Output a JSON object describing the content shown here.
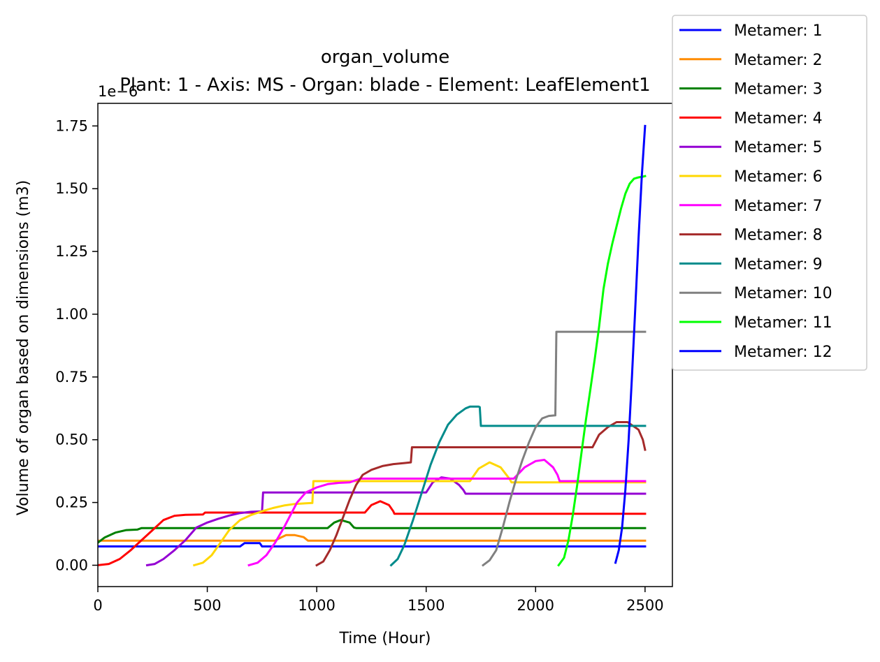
{
  "chart_data": {
    "type": "line",
    "title": "organ_volume",
    "subtitle": "Plant: 1 - Axis: MS - Organ: blade - Element: LeafElement1",
    "xlabel": "Time (Hour)",
    "ylabel": "Volume of organ based on dimensions (m3)",
    "y_offset_label": "1e−6",
    "xlim": [
      0,
      2625
    ],
    "ylim": [
      -0.085,
      1.84
    ],
    "x_ticks": [
      0,
      500,
      1000,
      1500,
      2000,
      2500
    ],
    "x_tick_labels": [
      "0",
      "500",
      "1000",
      "1500",
      "2000",
      "2500"
    ],
    "y_ticks": [
      0,
      0.25,
      0.5,
      0.75,
      1.0,
      1.25,
      1.5,
      1.75
    ],
    "y_tick_labels": [
      "0.00",
      "0.25",
      "0.50",
      "0.75",
      "1.00",
      "1.25",
      "1.50",
      "1.75"
    ],
    "grid": false,
    "legend_position": "top-right, outside plot",
    "series": [
      {
        "name": "Metamer: 1",
        "color": "#0000ff",
        "x": [
          0,
          650,
          670,
          740,
          750,
          2500
        ],
        "y": [
          0.075,
          0.075,
          0.088,
          0.088,
          0.075,
          0.075
        ]
      },
      {
        "name": "Metamer: 2",
        "color": "#ff8c00",
        "x": [
          0,
          810,
          840,
          860,
          900,
          940,
          960,
          980,
          2500
        ],
        "y": [
          0.098,
          0.098,
          0.112,
          0.12,
          0.12,
          0.112,
          0.098,
          0.098,
          0.098
        ]
      },
      {
        "name": "Metamer: 3",
        "color": "#008000",
        "x": [
          0,
          30,
          80,
          130,
          180,
          200,
          1050,
          1080,
          1110,
          1150,
          1170,
          1180,
          2500
        ],
        "y": [
          0.09,
          0.11,
          0.13,
          0.14,
          0.142,
          0.148,
          0.148,
          0.17,
          0.18,
          0.17,
          0.15,
          0.148,
          0.148
        ]
      },
      {
        "name": "Metamer: 4",
        "color": "#ff0000",
        "x": [
          0,
          50,
          100,
          150,
          200,
          250,
          300,
          350,
          400,
          480,
          490,
          1220,
          1250,
          1290,
          1330,
          1350,
          1355,
          2500
        ],
        "y": [
          0.0,
          0.005,
          0.025,
          0.06,
          0.1,
          0.14,
          0.18,
          0.197,
          0.201,
          0.202,
          0.21,
          0.21,
          0.24,
          0.255,
          0.24,
          0.215,
          0.205,
          0.205
        ]
      },
      {
        "name": "Metamer: 5",
        "color": "#9400d3",
        "x": [
          225,
          260,
          300,
          350,
          400,
          450,
          500,
          550,
          600,
          650,
          700,
          750,
          755,
          1500,
          1530,
          1570,
          1610,
          1650,
          1670,
          1680,
          2500
        ],
        "y": [
          0.0,
          0.005,
          0.025,
          0.06,
          0.1,
          0.15,
          0.17,
          0.185,
          0.198,
          0.208,
          0.213,
          0.215,
          0.29,
          0.29,
          0.33,
          0.35,
          0.345,
          0.32,
          0.3,
          0.285,
          0.285
        ]
      },
      {
        "name": "Metamer: 6",
        "color": "#ffd700",
        "x": [
          440,
          480,
          520,
          560,
          600,
          650,
          700,
          750,
          800,
          850,
          900,
          950,
          980,
          985,
          1700,
          1740,
          1790,
          1840,
          1880,
          1890,
          2500
        ],
        "y": [
          0.0,
          0.01,
          0.04,
          0.09,
          0.14,
          0.18,
          0.2,
          0.215,
          0.228,
          0.238,
          0.244,
          0.247,
          0.248,
          0.335,
          0.335,
          0.385,
          0.41,
          0.39,
          0.345,
          0.33,
          0.33
        ]
      },
      {
        "name": "Metamer: 7",
        "color": "#ff00ff",
        "x": [
          690,
          730,
          770,
          810,
          850,
          880,
          910,
          950,
          1000,
          1050,
          1100,
          1150,
          1200,
          1900,
          1950,
          2000,
          2040,
          2080,
          2100,
          2110,
          2500
        ],
        "y": [
          0.0,
          0.01,
          0.04,
          0.09,
          0.15,
          0.2,
          0.25,
          0.29,
          0.31,
          0.323,
          0.328,
          0.33,
          0.345,
          0.345,
          0.39,
          0.415,
          0.42,
          0.39,
          0.36,
          0.335,
          0.335
        ]
      },
      {
        "name": "Metamer: 8",
        "color": "#a52a2a",
        "x": [
          1000,
          1030,
          1060,
          1090,
          1120,
          1150,
          1180,
          1210,
          1250,
          1300,
          1350,
          1400,
          1430,
          1435,
          2260,
          2290,
          2330,
          2370,
          2420,
          2470,
          2490,
          2500
        ],
        "y": [
          0.0,
          0.015,
          0.06,
          0.12,
          0.19,
          0.26,
          0.32,
          0.36,
          0.38,
          0.395,
          0.403,
          0.407,
          0.41,
          0.47,
          0.47,
          0.52,
          0.55,
          0.57,
          0.57,
          0.54,
          0.5,
          0.46
        ]
      },
      {
        "name": "Metamer: 9",
        "color": "#008b8b",
        "x": [
          1340,
          1370,
          1400,
          1440,
          1480,
          1520,
          1560,
          1600,
          1640,
          1680,
          1700,
          1740,
          1745,
          1750,
          2500
        ],
        "y": [
          0.0,
          0.025,
          0.08,
          0.18,
          0.29,
          0.4,
          0.49,
          0.56,
          0.6,
          0.625,
          0.632,
          0.632,
          0.63,
          0.555,
          0.555
        ]
      },
      {
        "name": "Metamer: 10",
        "color": "#808080",
        "x": [
          1760,
          1790,
          1820,
          1850,
          1880,
          1910,
          1940,
          1970,
          2000,
          2030,
          2060,
          2090,
          2095,
          2500
        ],
        "y": [
          0.0,
          0.02,
          0.06,
          0.15,
          0.25,
          0.34,
          0.42,
          0.49,
          0.55,
          0.585,
          0.595,
          0.597,
          0.93,
          0.93
        ]
      },
      {
        "name": "Metamer: 11",
        "color": "#00ff00",
        "x": [
          2105,
          2130,
          2150,
          2170,
          2190,
          2210,
          2230,
          2250,
          2270,
          2290,
          2310,
          2330,
          2350,
          2370,
          2390,
          2410,
          2430,
          2450,
          2470,
          2490,
          2500
        ],
        "y": [
          0.0,
          0.03,
          0.1,
          0.2,
          0.32,
          0.45,
          0.58,
          0.7,
          0.82,
          0.95,
          1.1,
          1.2,
          1.28,
          1.35,
          1.42,
          1.48,
          1.52,
          1.54,
          1.545,
          1.548,
          1.55
        ]
      },
      {
        "name": "Metamer: 12",
        "color": "#0000ff",
        "x": [
          2365,
          2380,
          2395,
          2410,
          2425,
          2440,
          2455,
          2470,
          2485,
          2500
        ],
        "y": [
          0.01,
          0.06,
          0.15,
          0.3,
          0.5,
          0.75,
          1.02,
          1.3,
          1.55,
          1.75
        ]
      }
    ]
  }
}
